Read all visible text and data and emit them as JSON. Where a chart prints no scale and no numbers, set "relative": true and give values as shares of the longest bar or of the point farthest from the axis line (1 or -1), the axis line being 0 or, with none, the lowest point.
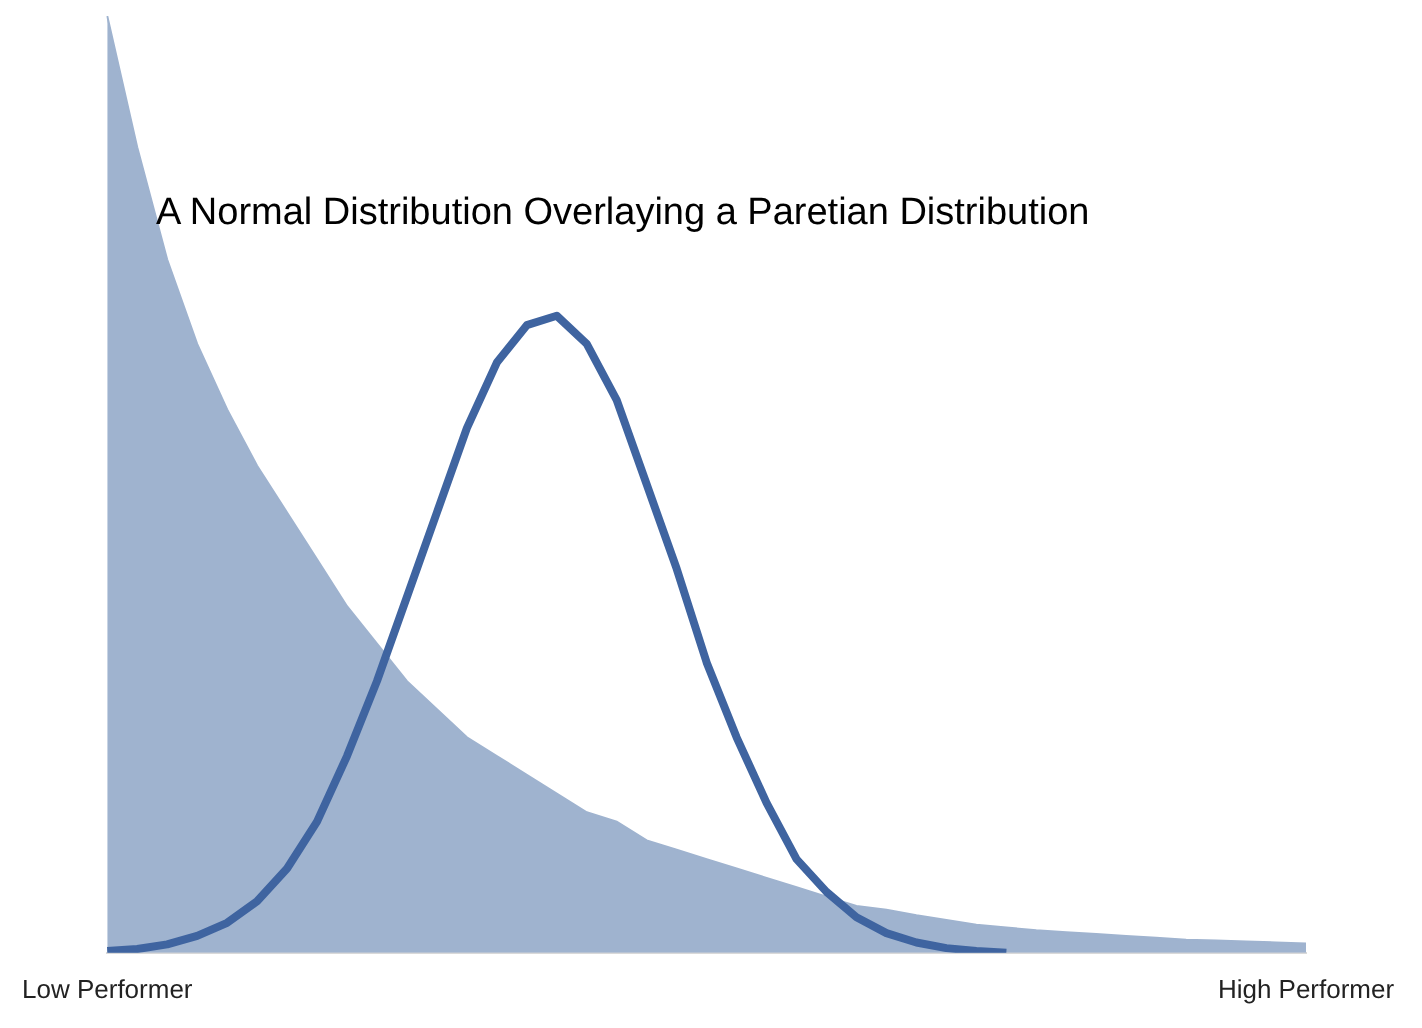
{
  "chart_data": {
    "type": "line",
    "relative": true,
    "title": "A Normal Distribution Overlaying a Paretian Distribution",
    "categories": [
      "Low Performer",
      null,
      null,
      null,
      null,
      null,
      null,
      null,
      null,
      null,
      null,
      null,
      null,
      null,
      null,
      null,
      null,
      null,
      null,
      null,
      null,
      null,
      null,
      null,
      null,
      null,
      null,
      null,
      null,
      null,
      null,
      null,
      null,
      null,
      null,
      null,
      null,
      null,
      null,
      null,
      "High Performer"
    ],
    "series": [
      {
        "type": "area",
        "color": "#9fb3cf",
        "values": [
          1.0,
          0.86,
          0.74,
          0.65,
          0.58,
          0.52,
          0.47,
          0.42,
          0.37,
          0.33,
          0.29,
          0.26,
          0.23,
          0.21,
          0.19,
          0.17,
          0.15,
          0.14,
          0.12,
          0.11,
          0.1,
          0.09,
          0.08,
          0.07,
          0.06,
          0.05,
          0.046,
          0.04,
          0.035,
          0.03,
          0.027,
          0.024,
          0.022,
          0.02,
          0.018,
          0.016,
          0.014,
          0.013,
          0.012,
          0.011,
          0.01
        ]
      },
      {
        "color": "#3f64a0",
        "values": [
          0.002,
          0.004,
          0.009,
          0.018,
          0.032,
          0.055,
          0.09,
          0.14,
          0.21,
          0.29,
          0.38,
          0.47,
          0.56,
          0.63,
          0.67,
          0.68,
          0.65,
          0.59,
          0.5,
          0.41,
          0.31,
          0.23,
          0.16,
          0.1,
          0.065,
          0.038,
          0.021,
          0.011,
          0.005,
          0.002,
          0,
          null,
          null,
          null,
          null,
          null,
          null,
          null,
          null,
          null,
          null
        ]
      }
    ]
  }
}
